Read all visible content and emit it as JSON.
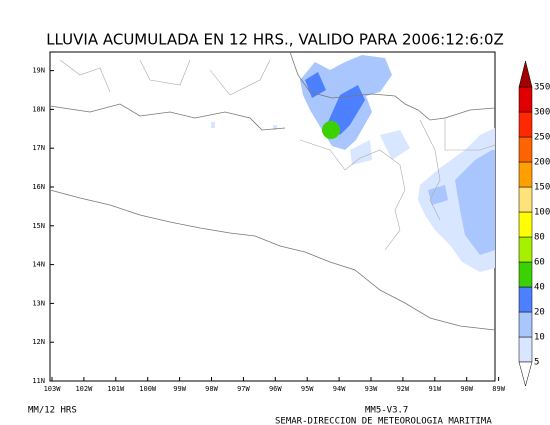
{
  "title": "LLUVIA ACUMULADA EN 12 HRS., VALIDO PARA 2006:12:6:0Z",
  "lat_labels": [
    "11N",
    "12N",
    "13N",
    "14N",
    "15N",
    "16N",
    "17N",
    "18N",
    "19N"
  ],
  "lon_labels": [
    "103W",
    "102W",
    "101W",
    "100W",
    "99W",
    "98W",
    "97W",
    "96W",
    "95W",
    "94W",
    "93W",
    "92W",
    "91W",
    "90W",
    "89W"
  ],
  "colorbar": {
    "levels": [
      "5",
      "10",
      "20",
      "40",
      "60",
      "80",
      "100",
      "150",
      "200",
      "250",
      "300",
      "350"
    ],
    "colors": [
      "#d8e6ff",
      "#a9c6ff",
      "#4d80ff",
      "#3cd200",
      "#a6f000",
      "#ffff00",
      "#ffe27a",
      "#ffa000",
      "#ff6400",
      "#ff2800",
      "#e00000"
    ],
    "under_color": "#ffffff",
    "over_color": "#a00000"
  },
  "footer": {
    "units": "MM/12 HRS",
    "model": "MM5-V3.7",
    "agency": "SEMAR-DIRECCION DE METEOROLOGIA MARITIMA"
  }
}
